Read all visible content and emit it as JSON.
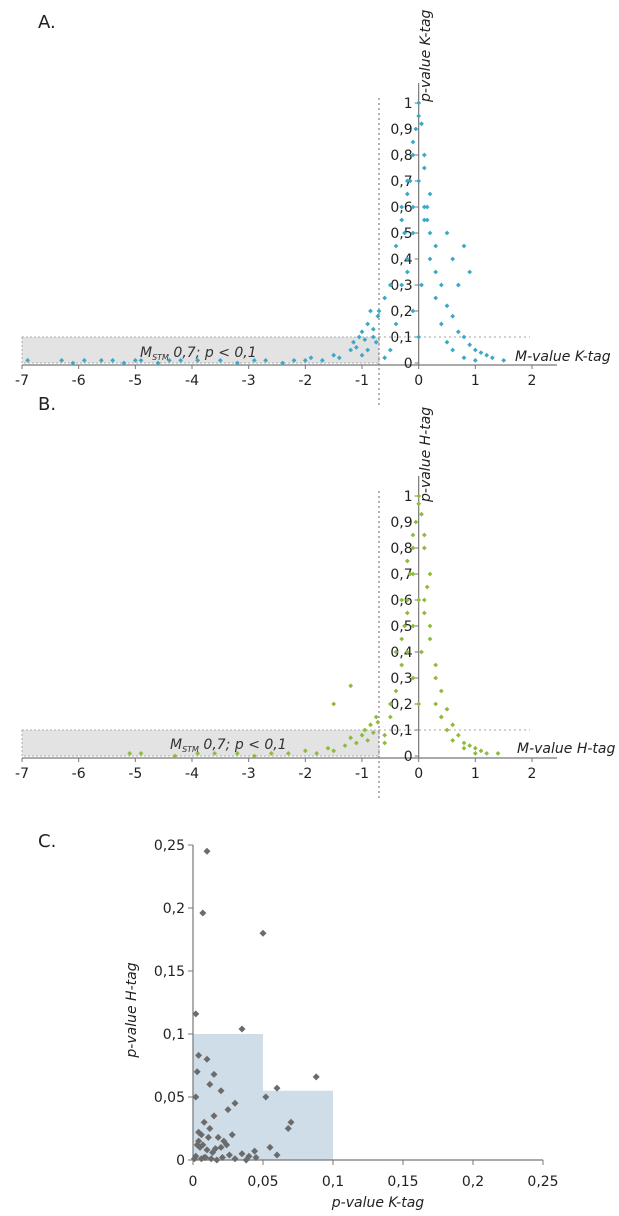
{
  "chart_data": [
    {
      "panel_label": "A.",
      "type": "scatter",
      "xlabel": "M-value K-tag",
      "ylabel": "p-value K-tag",
      "xlim": [
        -7,
        2
      ],
      "ylim": [
        0,
        1
      ],
      "xticks": [
        "-7",
        "-6",
        "-5",
        "-4",
        "-3",
        "-2",
        "-1",
        "0",
        "1",
        "2"
      ],
      "yticks": [
        "0",
        "0,1",
        "0,2",
        "0,3",
        "0,4",
        "0,5",
        "0,6",
        "0,7",
        "0,8",
        "0,9",
        "1"
      ],
      "annotation": {
        "main": "M",
        "sub": "STM",
        "rest": " 0,7; p < 0,1"
      },
      "threshold": {
        "x": -0.7,
        "y": 0.1
      },
      "color": "#3BA8C9",
      "series": [
        {
          "x": [
            -6.9,
            -6.3,
            -6.1,
            -5.9,
            -5.6,
            -5.4,
            -5.2,
            -5.0,
            -4.9,
            -4.6,
            -4.4,
            -4.2,
            -3.9,
            -3.5,
            -3.2,
            -2.9,
            -2.7,
            -2.4,
            -2.2,
            -2.0,
            -1.9,
            -1.7,
            -1.5,
            -1.4,
            -1.2,
            -1.15,
            -1.1,
            -1.05,
            -1.0,
            -0.95,
            -0.9,
            -0.85,
            -0.8,
            -0.75,
            -0.72,
            -1.0,
            -0.9,
            -0.8,
            -0.7,
            -0.6,
            -0.5,
            -0.4,
            -0.3,
            -0.25,
            -0.2,
            -0.15,
            -0.1,
            -0.05,
            0.0,
            0.05,
            0.1,
            0.15,
            0.2,
            0.3,
            0.4,
            0.5,
            0.6,
            0.7,
            0.8,
            0.9,
            1.0,
            1.1,
            1.2,
            1.3,
            1.5,
            -0.6,
            -0.5,
            -0.4,
            -0.3,
            -0.2,
            -0.1,
            0.1,
            0.2,
            0.3,
            0.4,
            0.5,
            0.6,
            0.8,
            1.0,
            -0.3,
            -0.2,
            -0.1,
            0.0,
            0.1,
            0.2,
            0.3,
            -0.2,
            -0.1,
            0.0,
            0.1,
            0.15,
            -0.1,
            0.0,
            0.05,
            0.6,
            0.8,
            0.9,
            0.5,
            0.7
          ],
          "y": [
            0.01,
            0.01,
            0.0,
            0.01,
            0.01,
            0.01,
            0.0,
            0.01,
            0.01,
            0.0,
            0.01,
            0.01,
            0.01,
            0.01,
            0.0,
            0.01,
            0.01,
            0.0,
            0.01,
            0.01,
            0.02,
            0.01,
            0.03,
            0.02,
            0.05,
            0.08,
            0.06,
            0.1,
            0.12,
            0.09,
            0.15,
            0.2,
            0.13,
            0.08,
            0.18,
            0.03,
            0.05,
            0.1,
            0.2,
            0.25,
            0.3,
            0.45,
            0.55,
            0.5,
            0.65,
            0.7,
            0.8,
            0.9,
            1.0,
            0.92,
            0.75,
            0.6,
            0.5,
            0.35,
            0.3,
            0.22,
            0.18,
            0.12,
            0.1,
            0.07,
            0.05,
            0.04,
            0.03,
            0.02,
            0.01,
            0.02,
            0.05,
            0.15,
            0.3,
            0.4,
            0.6,
            0.55,
            0.4,
            0.25,
            0.15,
            0.08,
            0.05,
            0.02,
            0.01,
            0.6,
            0.7,
            0.85,
            0.95,
            0.8,
            0.65,
            0.45,
            0.35,
            0.5,
            0.7,
            0.6,
            0.55,
            0.2,
            0.1,
            0.3,
            0.4,
            0.45,
            0.35,
            0.5,
            0.3
          ]
        }
      ]
    },
    {
      "panel_label": "B.",
      "type": "scatter",
      "xlabel": "M-value H-tag",
      "ylabel": "p-value H-tag",
      "xlim": [
        -7,
        2
      ],
      "ylim": [
        0,
        1
      ],
      "xticks": [
        "-7",
        "-6",
        "-5",
        "-4",
        "-3",
        "-2",
        "-1",
        "0",
        "1",
        "2"
      ],
      "yticks": [
        "0",
        "0,1",
        "0,2",
        "0,3",
        "0,4",
        "0,5",
        "0,6",
        "0,7",
        "0,8",
        "0,9",
        "1"
      ],
      "annotation": {
        "main": "M",
        "sub": "STM",
        "rest": " 0,7; p < 0,1"
      },
      "threshold": {
        "x": -0.7,
        "y": 0.1
      },
      "color": "#8FBB3C",
      "series": [
        {
          "x": [
            -5.1,
            -4.9,
            -4.3,
            -3.9,
            -3.6,
            -3.2,
            -2.9,
            -2.6,
            -2.3,
            -2.0,
            -1.8,
            -1.6,
            -1.5,
            -1.3,
            -1.2,
            -1.1,
            -1.0,
            -0.95,
            -0.9,
            -0.85,
            -0.8,
            -0.75,
            -0.72,
            -1.5,
            -1.2,
            -0.6,
            -0.5,
            -0.4,
            -0.3,
            -0.25,
            -0.2,
            -0.15,
            -0.1,
            -0.05,
            0.0,
            0.05,
            0.1,
            0.15,
            0.2,
            0.3,
            0.4,
            0.5,
            0.6,
            0.7,
            0.8,
            0.9,
            1.0,
            1.1,
            1.2,
            1.4,
            -0.6,
            -0.5,
            -0.4,
            -0.3,
            -0.2,
            -0.1,
            0.1,
            0.2,
            0.3,
            0.4,
            0.5,
            0.6,
            0.8,
            1.0,
            -0.3,
            -0.2,
            -0.1,
            0.0,
            0.1,
            0.2,
            -0.2,
            -0.1,
            0.0,
            0.1,
            -0.1,
            0.0,
            0.05,
            0.3,
            0.4
          ],
          "y": [
            0.01,
            0.01,
            0.0,
            0.01,
            0.01,
            0.01,
            0.0,
            0.01,
            0.01,
            0.02,
            0.01,
            0.03,
            0.02,
            0.04,
            0.07,
            0.05,
            0.08,
            0.1,
            0.06,
            0.12,
            0.09,
            0.15,
            0.13,
            0.2,
            0.27,
            0.08,
            0.15,
            0.25,
            0.35,
            0.5,
            0.6,
            0.7,
            0.8,
            0.9,
            1.0,
            0.93,
            0.8,
            0.65,
            0.5,
            0.35,
            0.25,
            0.18,
            0.12,
            0.08,
            0.05,
            0.04,
            0.03,
            0.02,
            0.01,
            0.01,
            0.05,
            0.2,
            0.4,
            0.45,
            0.55,
            0.7,
            0.6,
            0.45,
            0.3,
            0.15,
            0.1,
            0.06,
            0.03,
            0.01,
            0.6,
            0.75,
            0.85,
            0.97,
            0.85,
            0.7,
            0.4,
            0.5,
            0.6,
            0.55,
            0.3,
            0.2,
            0.4,
            0.2,
            0.15
          ]
        }
      ]
    },
    {
      "panel_label": "C.",
      "type": "scatter",
      "xlabel": "p-value K-tag",
      "ylabel": "p-value H-tag",
      "xlim": [
        0,
        0.25
      ],
      "ylim": [
        0,
        0.25
      ],
      "xticks": [
        "0",
        "0,05",
        "0,1",
        "0,15",
        "0,2",
        "0,25"
      ],
      "yticks": [
        "0",
        "0,05",
        "0,1",
        "0,15",
        "0,2",
        "0,25"
      ],
      "color": "#6b6b6b",
      "region": {
        "step1": {
          "x": 0.05,
          "y": 0.1
        },
        "step2": {
          "x": 0.1,
          "y": 0.055
        }
      },
      "series": [
        {
          "x": [
            0.01,
            0.007,
            0.05,
            0.002,
            0.035,
            0.004,
            0.003,
            0.01,
            0.015,
            0.012,
            0.06,
            0.052,
            0.088,
            0.07,
            0.068,
            0.02,
            0.025,
            0.03,
            0.015,
            0.008,
            0.004,
            0.006,
            0.012,
            0.018,
            0.022,
            0.028,
            0.003,
            0.005,
            0.01,
            0.014,
            0.02,
            0.026,
            0.035,
            0.04,
            0.044,
            0.008,
            0.002,
            0.001,
            0.006,
            0.009,
            0.013,
            0.017,
            0.021,
            0.03,
            0.038,
            0.045,
            0.004,
            0.007,
            0.011,
            0.016,
            0.002,
            0.024,
            0.055,
            0.06
          ],
          "y": [
            0.245,
            0.196,
            0.18,
            0.116,
            0.104,
            0.083,
            0.07,
            0.08,
            0.068,
            0.06,
            0.057,
            0.05,
            0.066,
            0.03,
            0.025,
            0.055,
            0.04,
            0.045,
            0.035,
            0.03,
            0.022,
            0.02,
            0.025,
            0.018,
            0.015,
            0.02,
            0.012,
            0.01,
            0.008,
            0.006,
            0.01,
            0.004,
            0.005,
            0.003,
            0.007,
            0.002,
            0.003,
            0.001,
            0.001,
            0.002,
            0.001,
            0.0,
            0.002,
            0.001,
            0.0,
            0.002,
            0.015,
            0.012,
            0.018,
            0.009,
            0.05,
            0.012,
            0.01,
            0.004
          ]
        }
      ]
    }
  ]
}
